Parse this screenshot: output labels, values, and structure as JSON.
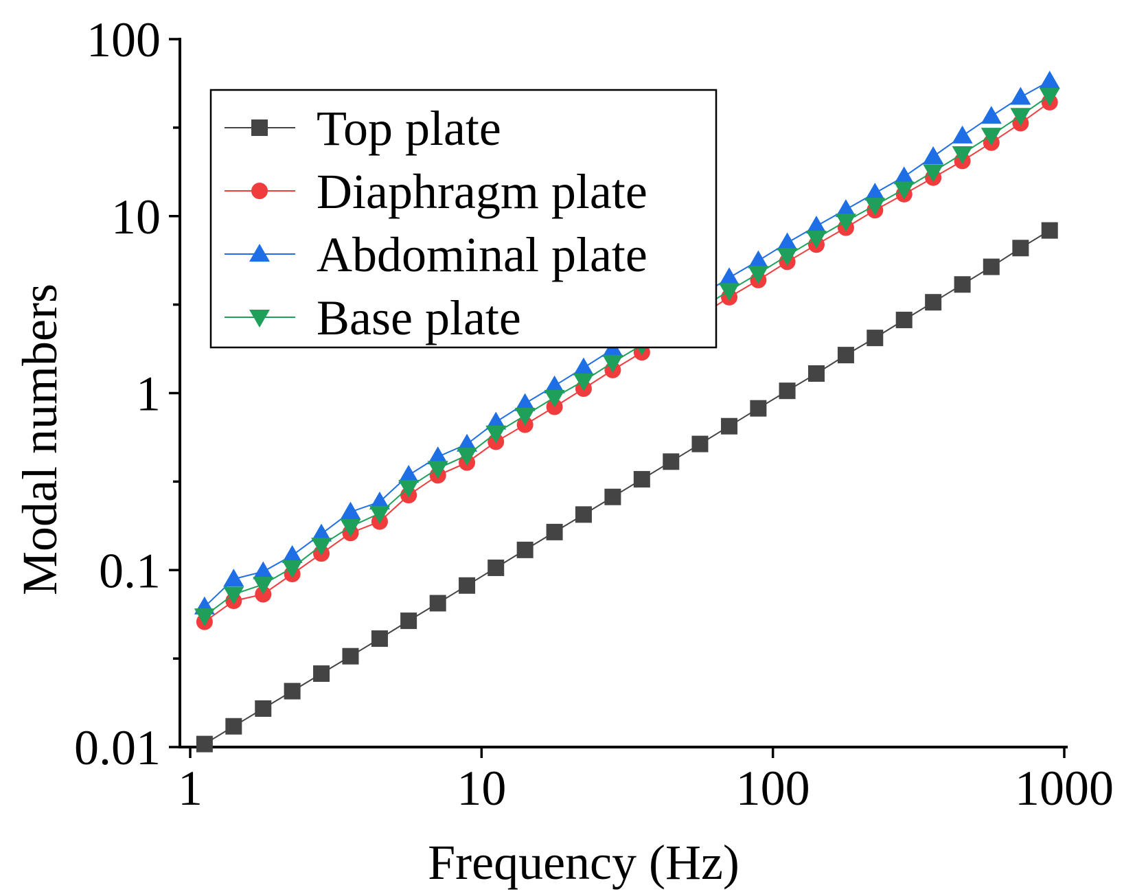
{
  "chart_data": {
    "type": "line",
    "title": "",
    "xlabel": "Frequency (Hz)",
    "ylabel": "Modal numbers",
    "xscale": "log",
    "yscale": "log",
    "xlim": [
      1,
      1000
    ],
    "ylim": [
      0.01,
      100
    ],
    "xticks": [
      {
        "value": 1,
        "label": "1"
      },
      {
        "value": 10,
        "label": "10"
      },
      {
        "value": 100,
        "label": "100"
      },
      {
        "value": 1000,
        "label": "1000"
      }
    ],
    "yticks": [
      {
        "value": 0.01,
        "label": "0.01"
      },
      {
        "value": 0.1,
        "label": "0.1"
      },
      {
        "value": 1,
        "label": "1"
      },
      {
        "value": 10,
        "label": "10"
      },
      {
        "value": 100,
        "label": "100"
      }
    ],
    "legend_position": "top-left",
    "x": [
      1.12,
      1.41,
      1.78,
      2.24,
      2.82,
      3.55,
      4.47,
      5.62,
      7.08,
      8.91,
      11.2,
      14.1,
      17.8,
      22.4,
      28.2,
      35.5,
      44.7,
      56.2,
      70.8,
      89.1,
      112,
      141,
      178,
      224,
      282,
      355,
      447,
      562,
      708,
      891
    ],
    "series": [
      {
        "name": "Top plate",
        "color": "#444444",
        "marker": "square",
        "values": [
          0.0104,
          0.0131,
          0.0165,
          0.0207,
          0.026,
          0.0326,
          0.041,
          0.0517,
          0.065,
          0.0818,
          0.103,
          0.13,
          0.164,
          0.206,
          0.259,
          0.326,
          0.41,
          0.516,
          0.65,
          0.82,
          1.03,
          1.29,
          1.64,
          2.05,
          2.59,
          3.26,
          4.11,
          5.17,
          6.6,
          8.3
        ]
      },
      {
        "name": "Diaphragm plate",
        "color": "#F03C3C",
        "marker": "circle",
        "values": [
          0.051,
          0.067,
          0.073,
          0.095,
          0.124,
          0.162,
          0.188,
          0.265,
          0.343,
          0.405,
          0.531,
          0.663,
          0.836,
          1.06,
          1.35,
          1.7,
          2.2,
          2.73,
          3.48,
          4.35,
          5.52,
          6.9,
          8.6,
          10.8,
          13.3,
          16.5,
          20.5,
          26.0,
          33.5,
          44.0
        ]
      },
      {
        "name": "Abdominal plate",
        "color": "#1E6EE6",
        "marker": "triangle-up",
        "values": [
          0.062,
          0.089,
          0.098,
          0.121,
          0.16,
          0.213,
          0.243,
          0.344,
          0.437,
          0.515,
          0.686,
          0.874,
          1.1,
          1.39,
          1.77,
          2.2,
          2.77,
          3.53,
          4.49,
          5.6,
          7.07,
          8.79,
          10.9,
          13.5,
          16.7,
          21.7,
          28.4,
          36.7,
          47.0,
          58.0
        ]
      },
      {
        "name": "Base plate",
        "color": "#1EA05A",
        "marker": "triangle-down",
        "values": [
          0.055,
          0.073,
          0.083,
          0.103,
          0.138,
          0.176,
          0.209,
          0.293,
          0.375,
          0.445,
          0.594,
          0.748,
          0.945,
          1.17,
          1.49,
          1.87,
          2.38,
          2.99,
          3.79,
          4.74,
          5.98,
          7.5,
          9.35,
          11.5,
          14.2,
          17.8,
          22.5,
          28.6,
          37.0,
          48.0
        ]
      }
    ]
  }
}
